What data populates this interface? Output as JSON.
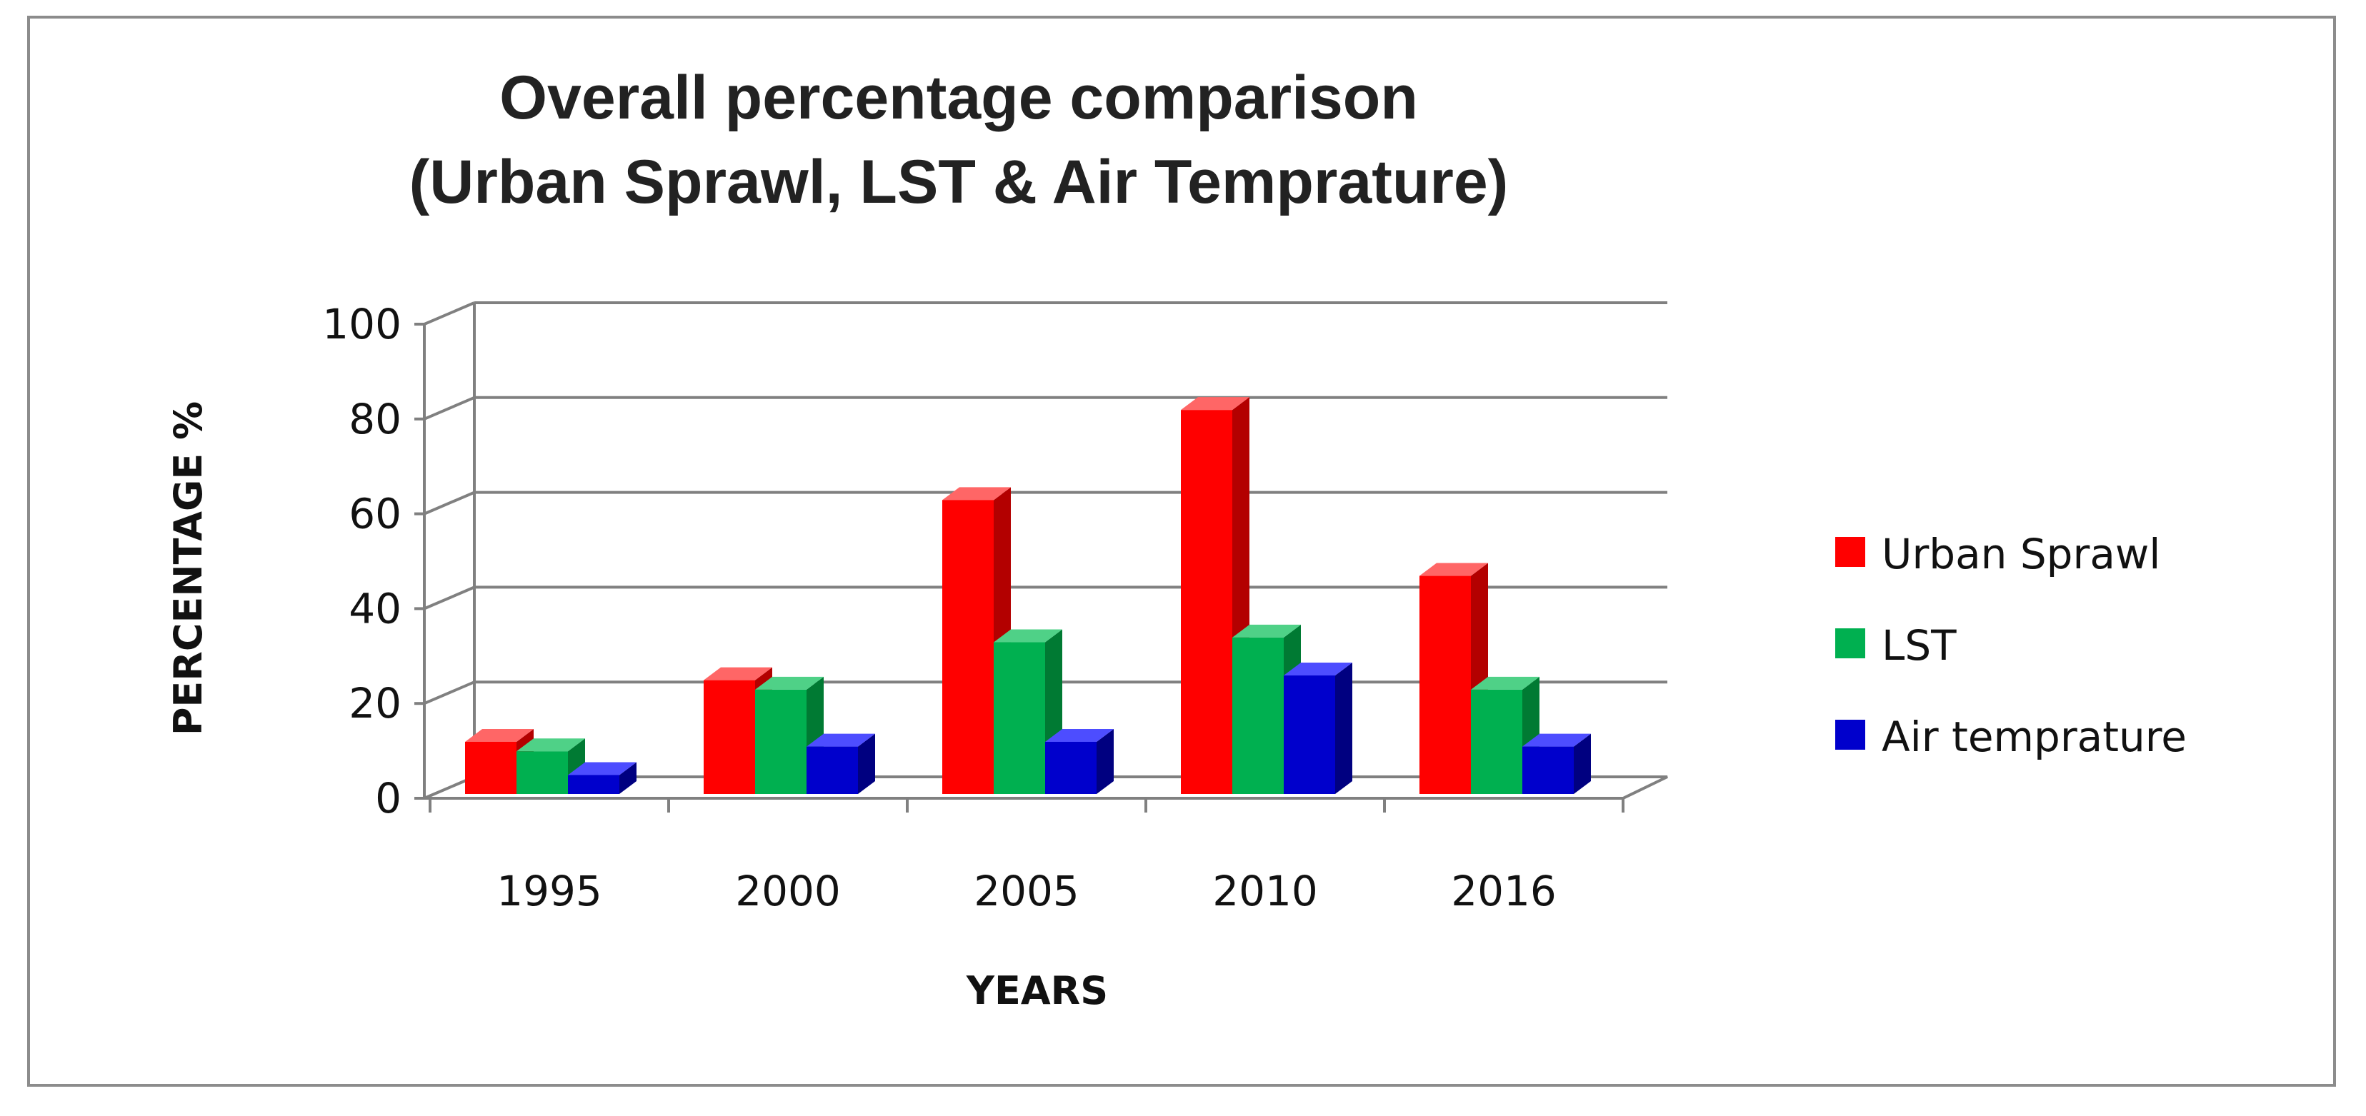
{
  "chart_data": {
    "type": "bar",
    "style": "3d-clustered-column",
    "title_lines": [
      "Overall percentage comparison",
      "(Urban Sprawl, LST & Air Temprature)"
    ],
    "xlabel": "YEARS",
    "ylabel": "PERCENTAGE %",
    "categories": [
      "1995",
      "2000",
      "2005",
      "2010",
      "2016"
    ],
    "ylim": [
      0,
      100
    ],
    "yticks": [
      "0",
      "20",
      "40",
      "60",
      "80",
      "100"
    ],
    "ytick_values": [
      0,
      20,
      40,
      60,
      80,
      100
    ],
    "grid": true,
    "legend_position": "right",
    "series": [
      {
        "name": "Urban Sprawl",
        "values": [
          11,
          24,
          62,
          81,
          46
        ],
        "color": "#ff0000",
        "side_color": "#b30000",
        "top_color": "#ff6666"
      },
      {
        "name": "LST",
        "values": [
          9,
          22,
          32,
          33,
          22
        ],
        "color": "#00b050",
        "side_color": "#007a33",
        "top_color": "#4fd187"
      },
      {
        "name": "Air temprature",
        "values": [
          4,
          10,
          11,
          25,
          10
        ],
        "color": "#0000cc",
        "side_color": "#000080",
        "top_color": "#4d4dff"
      }
    ]
  }
}
